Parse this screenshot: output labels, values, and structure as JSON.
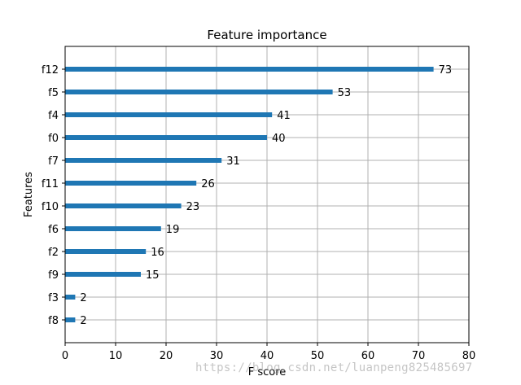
{
  "chart_data": {
    "type": "bar",
    "orientation": "horizontal",
    "title": "Feature importance",
    "xlabel": "F score",
    "ylabel": "Features",
    "categories": [
      "f12",
      "f5",
      "f4",
      "f0",
      "f7",
      "f11",
      "f10",
      "f6",
      "f2",
      "f9",
      "f3",
      "f8"
    ],
    "values": [
      73,
      53,
      41,
      40,
      31,
      26,
      23,
      19,
      16,
      15,
      2,
      2
    ],
    "xlim": [
      0,
      80
    ],
    "xticks": [
      0,
      10,
      20,
      30,
      40,
      50,
      60,
      70,
      80
    ],
    "grid": true,
    "bar_color": "#1f77b4"
  },
  "watermark": "https://blog.csdn.net/luanpeng825485697"
}
